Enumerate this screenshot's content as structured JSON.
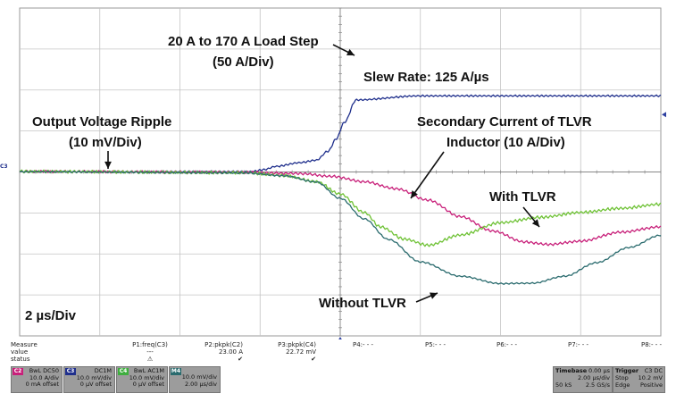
{
  "chart_data": {
    "type": "line",
    "title": "",
    "xlabel": "",
    "ylabel": "",
    "divisions": {
      "x": 8,
      "y": 8
    },
    "series": [
      {
        "color": "#1f2f8c",
        "x": [
          0,
          2.9,
          3.05,
          3.2,
          3.5,
          3.7,
          3.85,
          3.95,
          4.05,
          4.2,
          5,
          8
        ],
        "y": [
          4.0,
          4.0,
          4.05,
          4.13,
          4.22,
          4.28,
          4.5,
          4.8,
          5.2,
          5.75,
          5.85,
          5.85
        ]
      },
      {
        "color": "#c8207a",
        "x": [
          0,
          2.9,
          3.2,
          3.5,
          3.9,
          4.3,
          4.7,
          5.1,
          5.5,
          5.9,
          6.3,
          6.6,
          7.0,
          7.5,
          8
        ],
        "y": [
          4.0,
          3.98,
          3.96,
          3.95,
          3.88,
          3.75,
          3.58,
          3.3,
          2.9,
          2.55,
          2.28,
          2.22,
          2.3,
          2.52,
          2.65
        ]
      },
      {
        "color": "#6fc236",
        "x": [
          0,
          2.8,
          3.3,
          3.7,
          4.0,
          4.3,
          4.5,
          4.8,
          5.1,
          5.5,
          6,
          6.5,
          7,
          7.5,
          8
        ],
        "y": [
          4.0,
          3.97,
          3.9,
          3.75,
          3.45,
          3.0,
          2.65,
          2.35,
          2.2,
          2.45,
          2.75,
          2.88,
          3.0,
          3.1,
          3.2
        ]
      },
      {
        "color": "#2a6b6e",
        "x": [
          0,
          2.8,
          3.3,
          3.7,
          4.0,
          4.3,
          4.6,
          5.0,
          5.5,
          6.0,
          6.4,
          6.8,
          7.2,
          7.6,
          8
        ],
        "y": [
          4.0,
          3.97,
          3.9,
          3.75,
          3.35,
          2.85,
          2.35,
          1.8,
          1.45,
          1.27,
          1.28,
          1.45,
          1.78,
          2.15,
          2.45
        ]
      }
    ]
  },
  "annotations": {
    "load_step": "20 A to 170 A Load Step",
    "load_step_scale": "(50 A/Div)",
    "slew_rate": "Slew Rate: 125 A/µs",
    "ripple": "Output Voltage Ripple",
    "ripple_scale": "(10 mV/Div)",
    "secondary_1": "Secondary Current of TLVR",
    "secondary_2": "Inductor (10 A/Div)",
    "with_tlvr": "With TLVR",
    "without_tlvr": "Without TLVR",
    "timebase": "2 µs/Div"
  },
  "marker": {
    "c3": "C3"
  },
  "measure": {
    "title": "Measure",
    "value_label": "value",
    "status_label": "status",
    "p1": {
      "name": "P1:freq(C3)",
      "value": "---"
    },
    "p2": {
      "name": "P2:pkpk(C2)",
      "value": "23.00 A"
    },
    "p3": {
      "name": "P3:pkpk(C4)",
      "value": "22.72 mV"
    },
    "p4": "P4:- - -",
    "p5": "P5:- - -",
    "p6": "P6:- - -",
    "p7": "P7:- - -",
    "p8": "P8:- - -"
  },
  "channels": [
    {
      "tag": "C2",
      "color": "#c8207a",
      "l1": "BwL DC50",
      "l2": "10.0 A/div",
      "l3": "0 mA offset"
    },
    {
      "tag": "C3",
      "color": "#1f2f8c",
      "l1": "DC1M",
      "l2": "10.0 mV/div",
      "l3": "0 µV offset"
    },
    {
      "tag": "C4",
      "color": "#3fae3f",
      "l1": "BwL AC1M",
      "l2": "10.0 mV/div",
      "l3": "0 µV offset"
    },
    {
      "tag": "M4",
      "color": "#2a6b6e",
      "l1": "",
      "l2": "10.0 mV/div",
      "l3": "2.00 µs/div"
    }
  ],
  "timebase_box": {
    "title": "Timebase",
    "delay": "0.00 µs",
    "per_div": "2.00 µs/div",
    "samples": "50 kS",
    "rate": "2.5 GS/s"
  },
  "trigger_box": {
    "title": "Trigger",
    "src": "C3 DC",
    "mode": "Stop",
    "level": "10.2 mV",
    "type": "Edge",
    "slope": "Positive"
  }
}
